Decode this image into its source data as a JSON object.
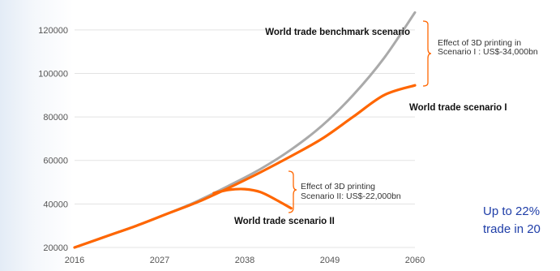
{
  "chart_data": {
    "type": "line",
    "title": "",
    "xlabel": "",
    "ylabel": "",
    "xlim": [
      2016,
      2060
    ],
    "ylim": [
      20000,
      130000
    ],
    "x_ticks": [
      2016,
      2027,
      2038,
      2049,
      2060
    ],
    "y_ticks": [
      20000,
      40000,
      60000,
      80000,
      100000,
      120000
    ],
    "grid": true,
    "legend": "none",
    "series": [
      {
        "name": "World trade benchmark scenario",
        "color": "#aaaaaa",
        "x": [
          2016,
          2020,
          2024,
          2028,
          2032,
          2036,
          2040,
          2044,
          2048,
          2052,
          2056,
          2060
        ],
        "y": [
          20000,
          25000,
          30000,
          35500,
          41500,
          48500,
          56000,
          65000,
          76000,
          90000,
          107000,
          128000
        ]
      },
      {
        "name": "World trade scenario I",
        "color": "#ff6600",
        "x": [
          2016,
          2020,
          2024,
          2028,
          2032,
          2036,
          2040,
          2044,
          2048,
          2052,
          2056,
          2060
        ],
        "y": [
          20000,
          25000,
          30000,
          35500,
          41000,
          47500,
          54500,
          62000,
          70000,
          80000,
          90000,
          94500
        ]
      },
      {
        "name": "World trade scenario II",
        "color": "#ff6600",
        "x": [
          2034,
          2036,
          2038,
          2040,
          2042,
          2044
        ],
        "y": [
          45000,
          46500,
          46800,
          45500,
          42000,
          38000
        ]
      }
    ],
    "annotations": [
      {
        "id": "effect1",
        "line1": "Effect of 3D printing in",
        "line2": "Scenario I : US$-34,000bn"
      },
      {
        "id": "effect2",
        "line1": "Effect of 3D printing",
        "line2": "Scenario II: US$-22,000bn"
      }
    ],
    "accent_color": "#ff6600"
  },
  "side_note": {
    "line1": "Up to 22%",
    "line2": "trade in 20"
  }
}
